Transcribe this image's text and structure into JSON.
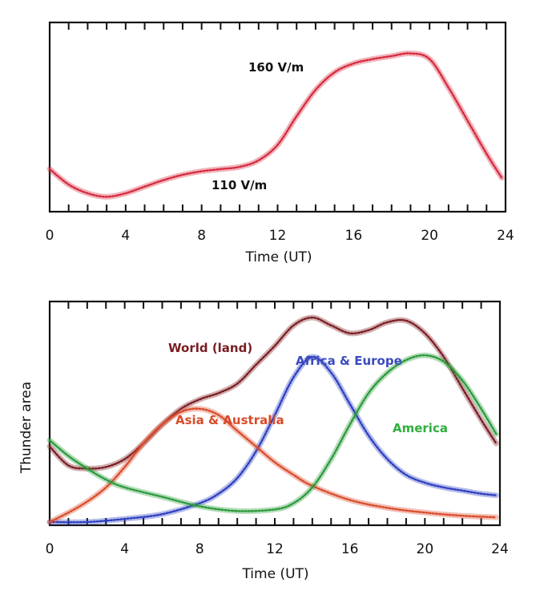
{
  "chart_data": [
    {
      "type": "line",
      "xlabel": "Time (UT)",
      "ylabel": "",
      "xlim": [
        0,
        24
      ],
      "x_ticks": [
        "0",
        "4",
        "8",
        "12",
        "16",
        "20",
        "24"
      ],
      "annotations": [
        {
          "text": "160 V/m",
          "color": "#111111"
        },
        {
          "text": "110 V/m",
          "color": "#111111"
        }
      ],
      "series": [
        {
          "color": "#d6283c",
          "x": [
            0,
            1,
            2,
            3,
            4,
            5,
            6,
            7,
            8,
            9,
            10,
            11,
            12,
            13,
            14,
            15,
            16,
            17,
            18,
            19,
            20,
            21,
            22,
            23,
            23.8
          ],
          "y": [
            0.75,
            0.4,
            0.2,
            0.12,
            0.2,
            0.35,
            0.5,
            0.62,
            0.7,
            0.75,
            0.8,
            0.95,
            1.3,
            1.95,
            2.55,
            2.95,
            3.15,
            3.25,
            3.32,
            3.38,
            3.25,
            2.6,
            1.85,
            1.1,
            0.55
          ]
        }
      ]
    },
    {
      "type": "line",
      "xlabel": "Time (UT)",
      "ylabel": "Thunder area",
      "xlim": [
        0,
        24
      ],
      "x_ticks": [
        "0",
        "4",
        "8",
        "12",
        "16",
        "20",
        "24"
      ],
      "series": [
        {
          "name": "World (land)",
          "color": "#7a1d22",
          "x": [
            0,
            1,
            2,
            3,
            4,
            5,
            6,
            7,
            8,
            9,
            10,
            11,
            12,
            13,
            14,
            15,
            16,
            17,
            18,
            19,
            20,
            21,
            22,
            23,
            23.8
          ],
          "y": [
            0.48,
            0.36,
            0.34,
            0.35,
            0.4,
            0.5,
            0.62,
            0.72,
            0.78,
            0.82,
            0.88,
            1.0,
            1.12,
            1.25,
            1.3,
            1.25,
            1.2,
            1.22,
            1.27,
            1.28,
            1.2,
            1.05,
            0.85,
            0.65,
            0.5
          ]
        },
        {
          "name": "Africa & Europe",
          "color": "#2c3ec0",
          "x": [
            0,
            2,
            4,
            6,
            8,
            9,
            10,
            11,
            12,
            13,
            14,
            15,
            16,
            17,
            18,
            19,
            20,
            21,
            22,
            23,
            23.8
          ],
          "y": [
            0.0,
            0.0,
            0.02,
            0.05,
            0.12,
            0.18,
            0.28,
            0.45,
            0.68,
            0.92,
            1.05,
            0.95,
            0.75,
            0.55,
            0.4,
            0.3,
            0.25,
            0.22,
            0.2,
            0.18,
            0.17
          ]
        },
        {
          "name": "Asia & Australia",
          "color": "#d94b2a",
          "x": [
            0,
            1,
            2,
            3,
            4,
            5,
            6,
            7,
            8,
            9,
            10,
            11,
            12,
            13,
            14,
            16,
            18,
            20,
            22,
            23.8
          ],
          "y": [
            0.0,
            0.06,
            0.13,
            0.22,
            0.35,
            0.5,
            0.62,
            0.7,
            0.72,
            0.68,
            0.58,
            0.48,
            0.38,
            0.3,
            0.23,
            0.14,
            0.09,
            0.06,
            0.04,
            0.03
          ]
        },
        {
          "name": "America",
          "color": "#2a9a3a",
          "x": [
            0,
            1,
            2,
            3,
            4,
            6,
            8,
            10,
            12,
            13,
            14,
            15,
            16,
            17,
            18,
            19,
            20,
            21,
            22,
            23,
            23.8
          ],
          "y": [
            0.52,
            0.42,
            0.34,
            0.27,
            0.22,
            0.16,
            0.1,
            0.07,
            0.08,
            0.12,
            0.22,
            0.4,
            0.62,
            0.82,
            0.95,
            1.03,
            1.06,
            1.02,
            0.9,
            0.72,
            0.56
          ]
        }
      ]
    }
  ]
}
